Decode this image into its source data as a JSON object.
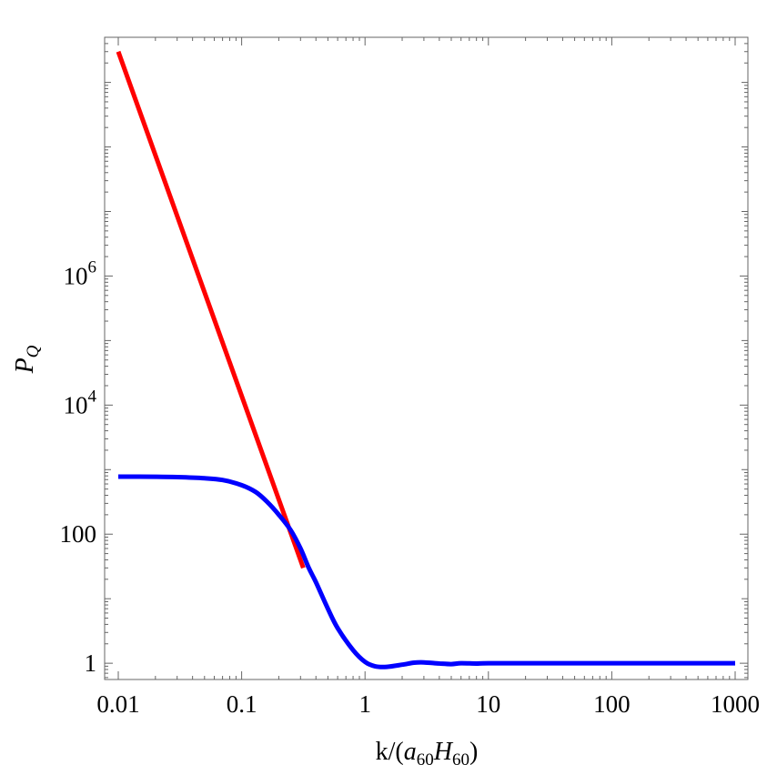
{
  "chart_data": {
    "type": "line",
    "xlabel": "k/(a60H60)",
    "xlabel_parts": {
      "prefix": "k/(",
      "a": "a",
      "a_sub": "60",
      "H": "H",
      "H_sub": "60",
      "suffix": ")"
    },
    "ylabel": "PQ",
    "ylabel_parts": {
      "main": "P",
      "sub": "Q"
    },
    "xscale": "log",
    "yscale": "log",
    "xlim": [
      0.01,
      1000
    ],
    "ylim": [
      0.56,
      5000000000
    ],
    "grid": false,
    "x_ticks": [
      {
        "value": 0.01,
        "label": "0.01"
      },
      {
        "value": 0.1,
        "label": "0.1"
      },
      {
        "value": 1,
        "label": "1"
      },
      {
        "value": 10,
        "label": "10"
      },
      {
        "value": 100,
        "label": "100"
      },
      {
        "value": 1000,
        "label": "1000"
      }
    ],
    "y_ticks": [
      {
        "value": 1,
        "base": "1",
        "exp": ""
      },
      {
        "value": 100,
        "base": "100",
        "exp": ""
      },
      {
        "value": 10000,
        "base": "10",
        "exp": "4"
      },
      {
        "value": 1000000,
        "base": "10",
        "exp": "6"
      }
    ],
    "series": [
      {
        "color": "#ff0000",
        "x": [
          0.01,
          0.316
        ],
        "y": [
          3000000000,
          30
        ]
      },
      {
        "color": "#0000ff",
        "x": [
          0.01,
          0.02,
          0.03,
          0.05,
          0.07,
          0.1,
          0.13,
          0.16,
          0.2,
          0.25,
          0.3,
          0.35,
          0.4,
          0.5,
          0.6,
          0.8,
          1.0,
          1.2,
          1.5,
          2.0,
          2.5,
          3.0,
          4.0,
          5.0,
          6.0,
          8.0,
          10,
          30,
          100,
          300,
          1000
        ],
        "y": [
          780,
          775,
          765,
          735,
          690,
          575,
          450,
          320,
          200,
          115,
          60,
          30,
          18,
          7,
          3.5,
          1.6,
          1.05,
          0.9,
          0.88,
          0.95,
          1.02,
          1.03,
          0.99,
          0.97,
          1.0,
          0.99,
          1.0,
          1.0,
          1.0,
          1.0,
          1.0
        ]
      }
    ]
  }
}
